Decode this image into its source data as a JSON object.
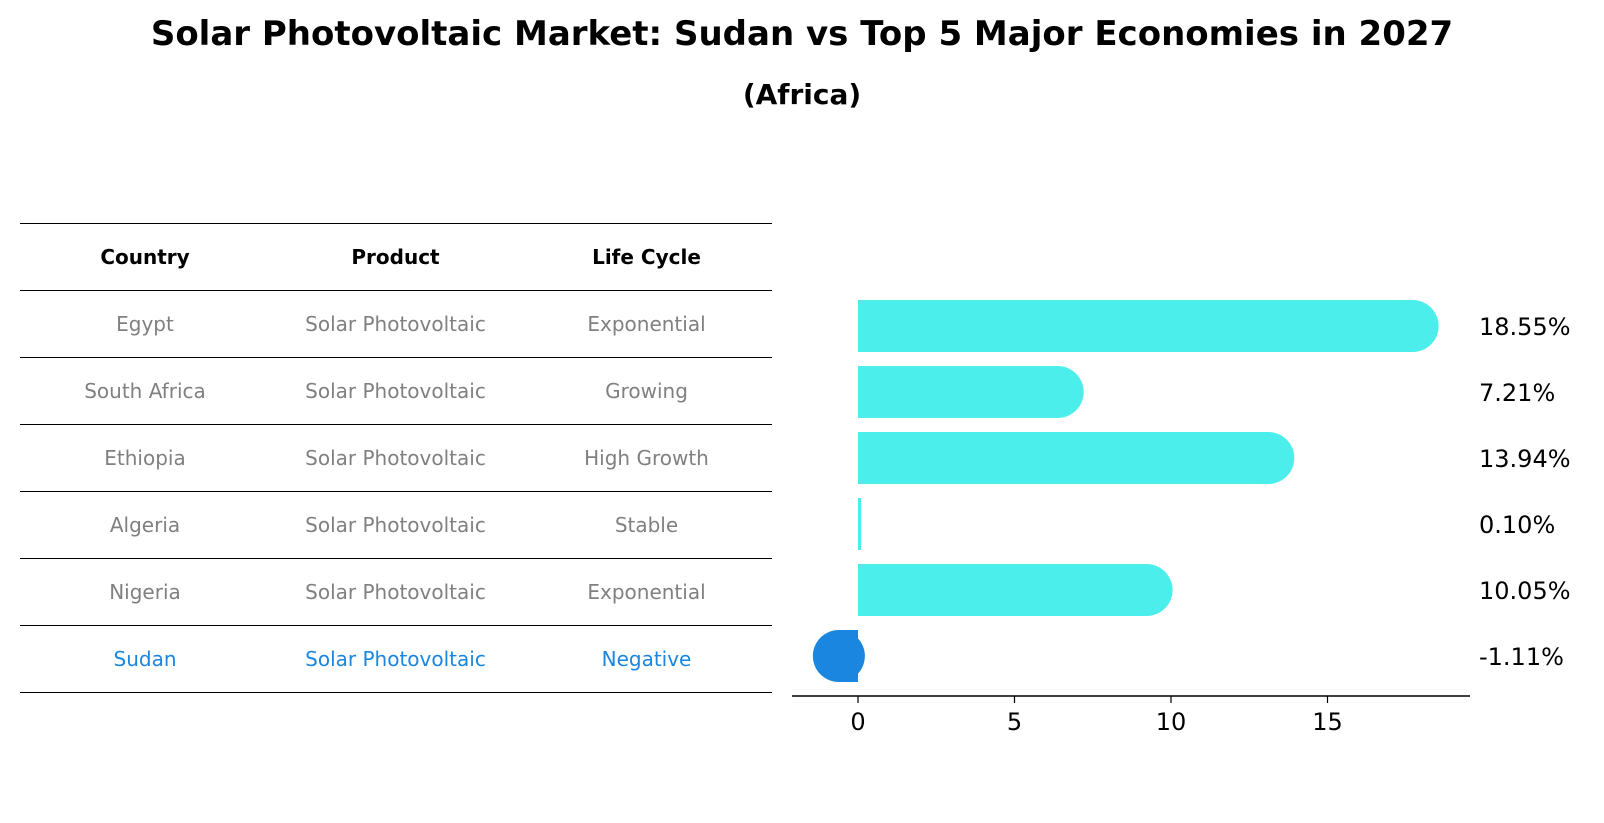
{
  "title": "Solar Photovoltaic Market: Sudan vs Top 5 Major Economies in 2027",
  "subtitle": "(Africa)",
  "table": {
    "headers": [
      "Country",
      "Product",
      "Life Cycle"
    ],
    "rows": [
      [
        "Egypt",
        "Solar Photovoltaic",
        "Exponential"
      ],
      [
        "South Africa",
        "Solar Photovoltaic",
        "Growing"
      ],
      [
        "Ethiopia",
        "Solar Photovoltaic",
        "High Growth"
      ],
      [
        "Algeria",
        "Solar Photovoltaic",
        "Stable"
      ],
      [
        "Nigeria",
        "Solar Photovoltaic",
        "Exponential"
      ],
      [
        "Sudan",
        "Solar Photovoltaic",
        "Negative"
      ]
    ],
    "highlight_row": 5
  },
  "colors": {
    "positive_bar": "#4beeeb",
    "highlight": "#1a86e0",
    "muted_text": "#808080"
  },
  "chart_data": {
    "type": "bar",
    "orientation": "horizontal",
    "categories": [
      "Egypt",
      "South Africa",
      "Ethiopia",
      "Algeria",
      "Nigeria",
      "Sudan"
    ],
    "values": [
      18.55,
      7.21,
      13.94,
      0.1,
      10.05,
      -1.11
    ],
    "value_labels": [
      "18.55%",
      "7.21%",
      "13.94%",
      "0.10%",
      "10.05%",
      "-1.11%"
    ],
    "xticks": [
      0,
      5,
      10,
      15
    ],
    "xlim": [
      -2.1,
      19.6
    ],
    "title": "",
    "xlabel": "",
    "ylabel": ""
  }
}
